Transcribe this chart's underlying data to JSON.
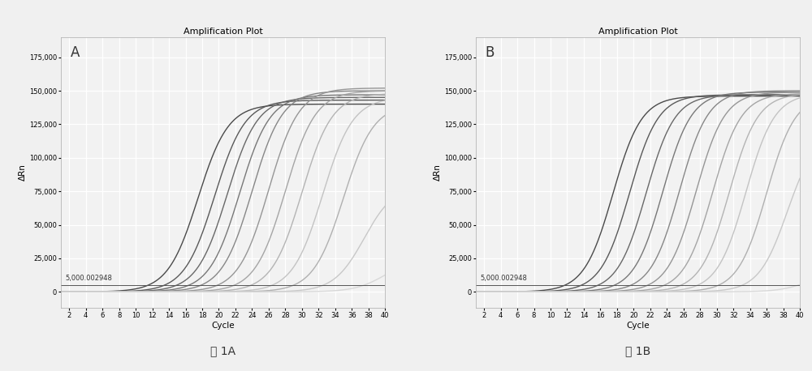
{
  "title": "Amplification Plot",
  "xlabel": "Cycle",
  "ylabel": "ΔRn",
  "xlim": [
    1,
    40
  ],
  "ylim": [
    -12000,
    190000
  ],
  "yticks": [
    0,
    25000,
    50000,
    75000,
    100000,
    125000,
    150000,
    175000
  ],
  "xticks": [
    2,
    4,
    6,
    8,
    10,
    12,
    14,
    16,
    18,
    20,
    22,
    24,
    26,
    28,
    30,
    32,
    34,
    36,
    38,
    40
  ],
  "threshold_value": 5000,
  "threshold_label": "5,000.002948",
  "background_color": "#f0f0f0",
  "plot_bg_color": "#f2f2f2",
  "grid_color": "#ffffff",
  "label_A": "A",
  "label_B": "B",
  "caption_A": "图 1A",
  "caption_B": "图 1B",
  "panel_A": {
    "curves": [
      {
        "midpoint": 17.5,
        "steepness": 0.55,
        "plateau": 140000,
        "color": "#4a4a4a",
        "lw": 1.0
      },
      {
        "midpoint": 19.5,
        "steepness": 0.55,
        "plateau": 143000,
        "color": "#595959",
        "lw": 1.0
      },
      {
        "midpoint": 21.0,
        "steepness": 0.55,
        "plateau": 145000,
        "color": "#686868",
        "lw": 1.0
      },
      {
        "midpoint": 22.5,
        "steepness": 0.55,
        "plateau": 147000,
        "color": "#787878",
        "lw": 1.0
      },
      {
        "midpoint": 24.0,
        "steepness": 0.55,
        "plateau": 150000,
        "color": "#878787",
        "lw": 1.0
      },
      {
        "midpoint": 26.0,
        "steepness": 0.55,
        "plateau": 152000,
        "color": "#969696",
        "lw": 1.0
      },
      {
        "midpoint": 28.0,
        "steepness": 0.55,
        "plateau": 150000,
        "color": "#a5a5a5",
        "lw": 1.0
      },
      {
        "midpoint": 30.0,
        "steepness": 0.55,
        "plateau": 148000,
        "color": "#b4b4b4",
        "lw": 1.0
      },
      {
        "midpoint": 32.5,
        "steepness": 0.55,
        "plateau": 145000,
        "color": "#c3c3c3",
        "lw": 1.0
      },
      {
        "midpoint": 35.0,
        "steepness": 0.55,
        "plateau": 140000,
        "color": "#b0b0b0",
        "lw": 1.0
      },
      {
        "midpoint": 37.5,
        "steepness": 0.55,
        "plateau": 80000,
        "color": "#c8c8c8",
        "lw": 1.0
      },
      {
        "midpoint": 40.0,
        "steepness": 0.55,
        "plateau": 25000,
        "color": "#d8d8d8",
        "lw": 1.0
      }
    ]
  },
  "panel_B": {
    "curves": [
      {
        "midpoint": 17.5,
        "steepness": 0.58,
        "plateau": 146000,
        "color": "#4a4a4a",
        "lw": 1.0
      },
      {
        "midpoint": 19.5,
        "steepness": 0.58,
        "plateau": 147000,
        "color": "#595959",
        "lw": 1.0
      },
      {
        "midpoint": 21.5,
        "steepness": 0.58,
        "plateau": 147000,
        "color": "#686868",
        "lw": 1.0
      },
      {
        "midpoint": 23.5,
        "steepness": 0.58,
        "plateau": 149000,
        "color": "#787878",
        "lw": 1.0
      },
      {
        "midpoint": 25.5,
        "steepness": 0.58,
        "plateau": 150000,
        "color": "#878787",
        "lw": 1.0
      },
      {
        "midpoint": 27.5,
        "steepness": 0.58,
        "plateau": 149000,
        "color": "#969696",
        "lw": 1.0
      },
      {
        "midpoint": 29.5,
        "steepness": 0.58,
        "plateau": 148000,
        "color": "#a5a5a5",
        "lw": 1.0
      },
      {
        "midpoint": 31.5,
        "steepness": 0.58,
        "plateau": 148000,
        "color": "#b4b4b4",
        "lw": 1.0
      },
      {
        "midpoint": 33.5,
        "steepness": 0.58,
        "plateau": 148000,
        "color": "#c3c3c3",
        "lw": 1.0
      },
      {
        "midpoint": 36.0,
        "steepness": 0.58,
        "plateau": 147000,
        "color": "#b0b0b0",
        "lw": 1.0
      },
      {
        "midpoint": 38.5,
        "steepness": 0.58,
        "plateau": 120000,
        "color": "#c8c8c8",
        "lw": 1.0
      },
      {
        "midpoint": 41.0,
        "steepness": 0.58,
        "plateau": 15000,
        "color": "#d8d8d8",
        "lw": 1.0
      }
    ]
  }
}
